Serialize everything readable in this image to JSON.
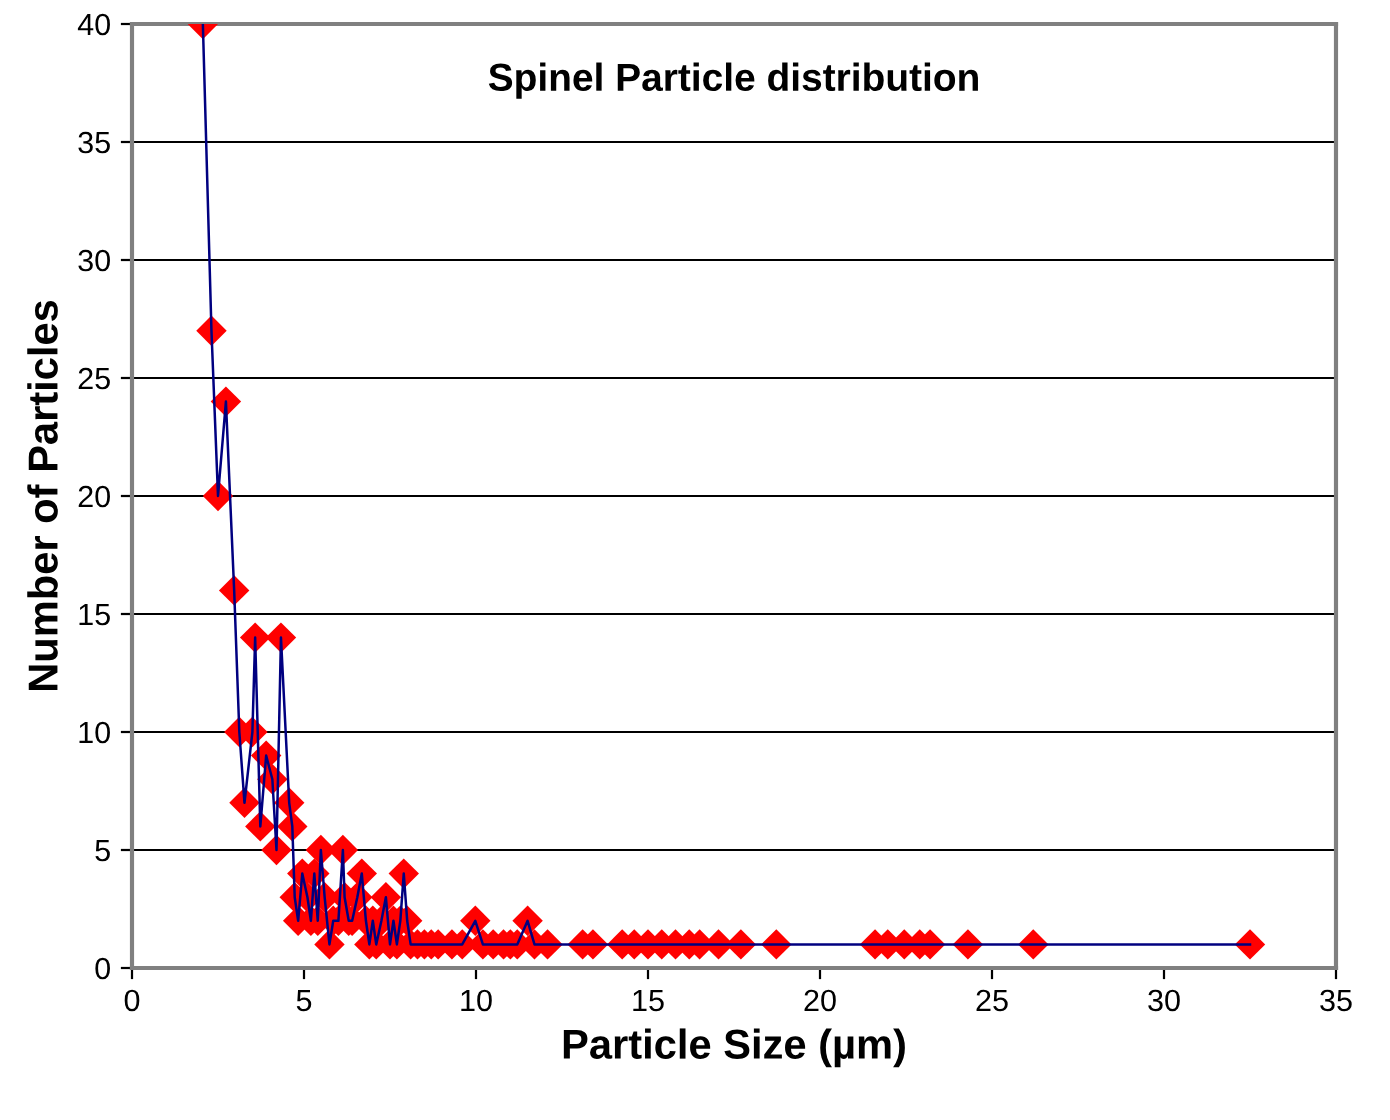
{
  "chart_data": {
    "type": "line",
    "title": "Spinel Particle distribution",
    "xlabel": "Particle Size (µm)",
    "ylabel": "Number of Particles",
    "x": [
      2.06,
      2.31,
      2.5,
      2.73,
      2.97,
      3.12,
      3.27,
      3.5,
      3.58,
      3.73,
      3.9,
      4.08,
      4.2,
      4.33,
      4.57,
      4.66,
      4.73,
      4.83,
      4.95,
      5.1,
      5.2,
      5.3,
      5.4,
      5.49,
      5.6,
      5.74,
      5.85,
      6.0,
      6.13,
      6.18,
      6.3,
      6.4,
      6.55,
      6.68,
      6.8,
      6.9,
      7.0,
      7.1,
      7.25,
      7.38,
      7.5,
      7.6,
      7.7,
      7.8,
      7.9,
      8.0,
      8.1,
      8.3,
      8.5,
      8.7,
      8.9,
      9.3,
      9.6,
      9.98,
      10.2,
      10.5,
      10.8,
      11.0,
      11.2,
      11.5,
      11.7,
      12.08,
      13.1,
      13.4,
      14.25,
      14.6,
      15.0,
      15.4,
      15.8,
      16.2,
      16.5,
      17.05,
      17.7,
      18.73,
      21.6,
      21.97,
      22.45,
      22.9,
      23.2,
      24.3,
      26.2,
      32.5
    ],
    "series": [
      {
        "color": "#000080",
        "colors": [
          "#ff0000",
          "#ff0000",
          "#ff0000",
          "#ff0000",
          "#ff0000",
          "#ff0000",
          "#ff0000",
          "#ff0000",
          "#ff0000",
          "#ff0000",
          "#ff0000",
          "#ff0000",
          "#ff0000",
          "#ff0000",
          "#ff0000",
          "#ff0000",
          "#ff0000",
          "#ff0000",
          "#ff0000",
          "#ff0000",
          "#ff0000",
          "#ff0000",
          "#ff0000",
          "#ff0000",
          "#ff0000",
          "#ff0000",
          "#ff0000",
          "#ff0000",
          "#ff0000",
          "#ff0000",
          "#ff0000",
          "#ff0000",
          "#ff0000",
          "#ff0000",
          "#ff0000",
          "#ff0000",
          "#ff0000",
          "#ff0000",
          "#ff0000",
          "#ff0000",
          "#ff0000",
          "#ff0000",
          "#ff0000",
          "#ff0000",
          "#ff0000",
          "#ff0000",
          "#ff0000",
          "#ff0000",
          "#ff0000",
          "#ff0000",
          "#ff0000",
          "#ff0000",
          "#ff0000",
          "#ff0000",
          "#ff0000",
          "#ff0000",
          "#ff0000",
          "#ff0000",
          "#ff0000",
          "#ff0000",
          "#ff0000",
          "#ff0000",
          "#ff0000",
          "#ff0000",
          "#ff0000",
          "#ff0000",
          "#ff0000",
          "#ff0000",
          "#ff0000",
          "#ff0000",
          "#ff0000",
          "#ff0000",
          "#ff0000",
          "#ff0000",
          "#ff0000",
          "#ff0000",
          "#ff0000",
          "#ff0000",
          "#ff0000",
          "#ff0000",
          "#ff0000",
          "#ff0000"
        ],
        "values": [
          40,
          27,
          20,
          24,
          16,
          10,
          7,
          10,
          14,
          6,
          9,
          8,
          5,
          14,
          7,
          6,
          3,
          2,
          4,
          3,
          2,
          4,
          2,
          5,
          3,
          1,
          2,
          2,
          5,
          3,
          2,
          2,
          3,
          4,
          2,
          1,
          2,
          1,
          2,
          3,
          1,
          2,
          1,
          2,
          4,
          2,
          1,
          1,
          1,
          1,
          1,
          1,
          1,
          2,
          1,
          1,
          1,
          1,
          1,
          2,
          1,
          1,
          1,
          1,
          1,
          1,
          1,
          1,
          1,
          1,
          1,
          1,
          1,
          1,
          1,
          1,
          1,
          1,
          1,
          1,
          1,
          1
        ]
      }
    ],
    "xlim": [
      0,
      35
    ],
    "ylim": [
      0,
      40
    ],
    "xticks": [
      0,
      5,
      10,
      15,
      20,
      25,
      30,
      35
    ],
    "yticks": [
      0,
      5,
      10,
      15,
      20,
      25,
      30,
      35,
      40
    ],
    "grid": "y",
    "marker": "diamond",
    "line_style": "solid"
  }
}
